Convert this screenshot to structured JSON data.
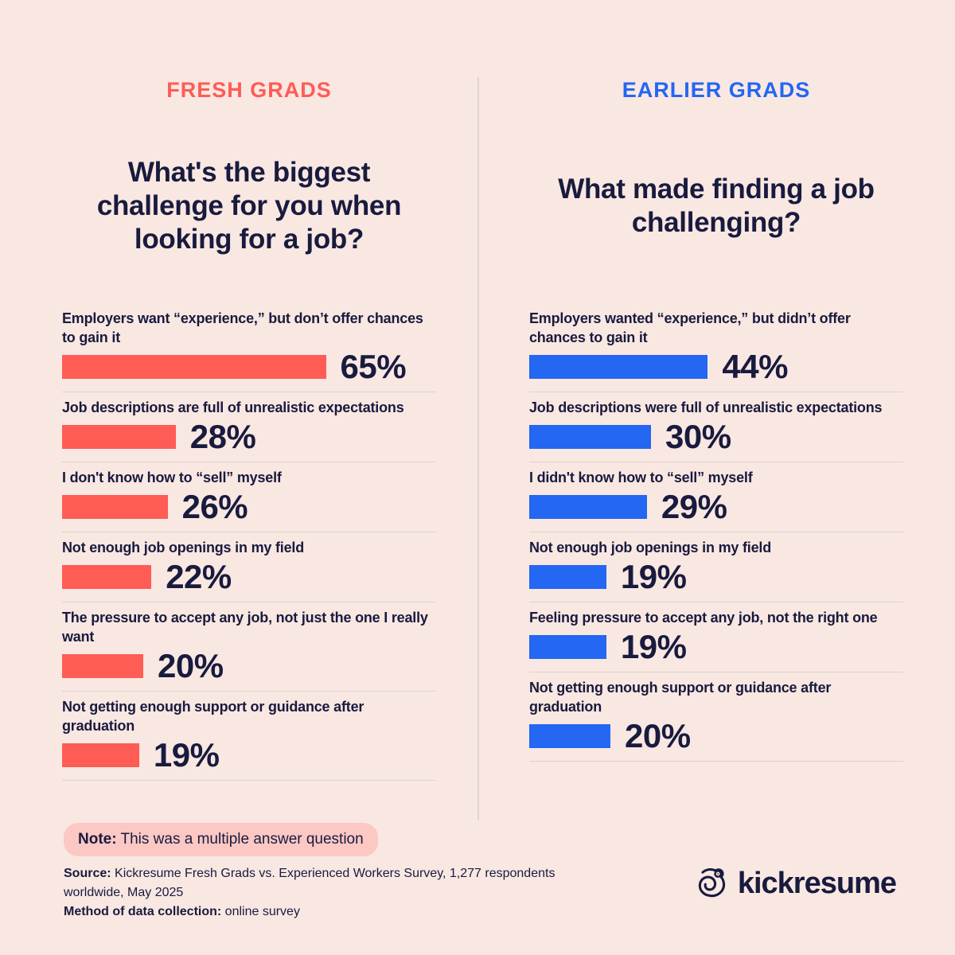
{
  "page": {
    "background": "#f9e7e2",
    "text_color": "#181b3e",
    "divider_color": "#dcd2cd"
  },
  "chart_data": [
    {
      "type": "bar",
      "orientation": "horizontal",
      "group": "FRESH GRADS",
      "accent": "#fe5c55",
      "bar_color": "#fe5c55",
      "title": "What's the biggest challenge for you when looking for a job?",
      "unit": "%",
      "xlim": [
        0,
        100
      ],
      "grid": false,
      "legend": "none",
      "value_labels": "right of bar",
      "categories": [
        "Employers want “experience,” but don’t offer chances to gain it",
        "Job descriptions are full of unrealistic expectations",
        "I don't know how to “sell” myself",
        "Not enough job openings in my field",
        "The pressure to accept any job, not just the one I really want",
        "Not getting enough support or guidance after graduation"
      ],
      "values": [
        65,
        28,
        26,
        22,
        20,
        19
      ]
    },
    {
      "type": "bar",
      "orientation": "horizontal",
      "group": "EARLIER GRADS",
      "accent": "#2367f2",
      "bar_color": "#2367f2",
      "title": "What made finding a job challenging?",
      "unit": "%",
      "xlim": [
        0,
        100
      ],
      "grid": false,
      "legend": "none",
      "value_labels": "right of bar",
      "categories": [
        "Employers wanted “experience,” but didn’t offer chances to gain it",
        "Job descriptions were full of unrealistic expectations",
        "I didn't know how to “sell” myself",
        "Not enough job openings in my field",
        "Feeling pressure to accept any job, not the right one",
        "Not getting enough support or guidance after graduation"
      ],
      "values": [
        44,
        30,
        29,
        19,
        19,
        20
      ]
    }
  ],
  "note": {
    "label": "Note:",
    "text": " This was a multiple answer question",
    "bg": "#fcc8c4"
  },
  "source": {
    "label": "Source:",
    "text": " Kickresume Fresh Grads vs. Experienced Workers Survey, 1,277 respondents worldwide, May 2025"
  },
  "method": {
    "label": "Method of data collection:",
    "text": " online survey"
  },
  "logo": {
    "wordmark": "kickresume",
    "icon": "chameleon-icon"
  }
}
